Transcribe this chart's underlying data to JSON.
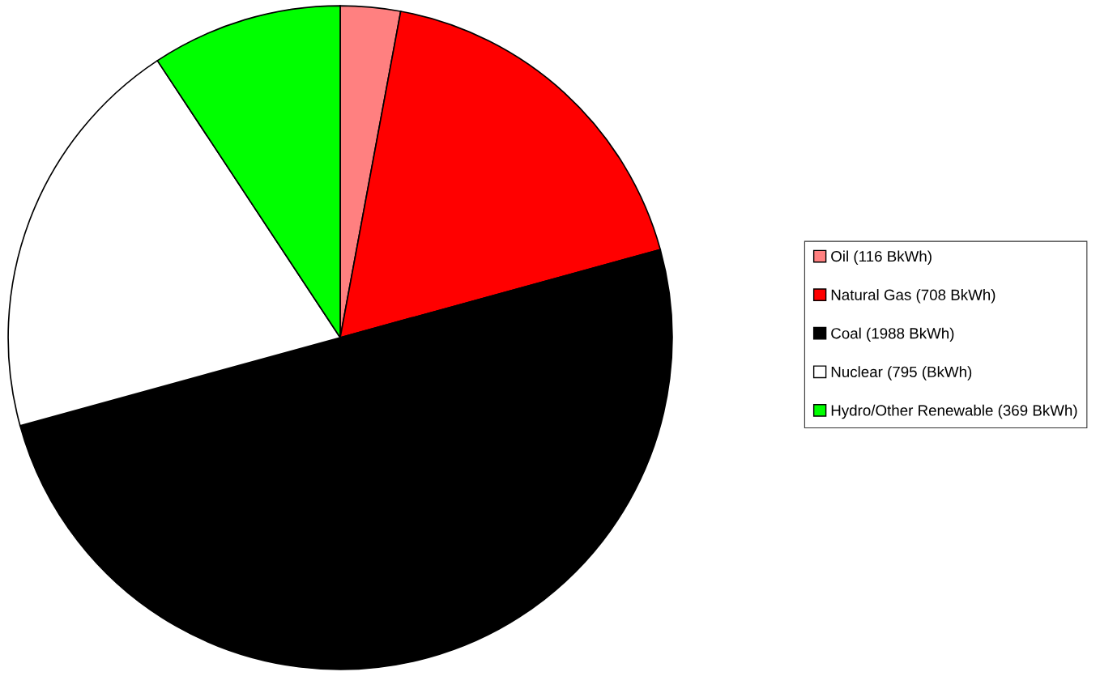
{
  "chart_data": {
    "type": "pie",
    "categories": [
      "Oil (116 BkWh)",
      "Natural Gas (708 BkWh)",
      "Coal (1988 BkWh)",
      "Nuclear (795 (BkWh)",
      "Hydro/Other Renewable (369 BkWh)"
    ],
    "values": [
      116,
      708,
      1988,
      795,
      369
    ],
    "colors": [
      "#ff8080",
      "#ff0000",
      "#000000",
      "#ffffff",
      "#00ff00"
    ],
    "legend": "right"
  }
}
